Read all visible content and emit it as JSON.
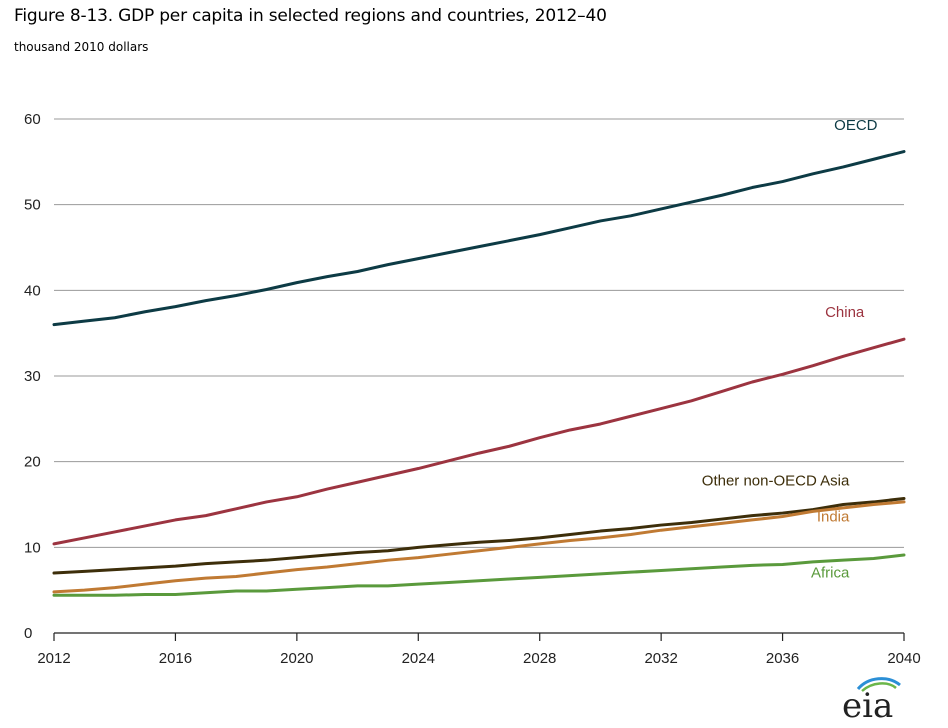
{
  "title": "Figure 8-13. GDP per capita in selected regions and countries, 2012–40",
  "subtitle": "thousand 2010 dollars",
  "logo_text": "eia",
  "chart_data": {
    "type": "line",
    "title": "Figure 8-13. GDP per capita in selected regions and countries, 2012–40",
    "ylabel": "thousand 2010 dollars",
    "xlabel": "",
    "xlim": [
      2012,
      2040
    ],
    "ylim": [
      0,
      60
    ],
    "x_ticks": [
      2012,
      2016,
      2020,
      2024,
      2028,
      2032,
      2036,
      2040
    ],
    "y_ticks": [
      0,
      10,
      20,
      30,
      40,
      50,
      60
    ],
    "grid": "horizontal",
    "legend": "inline labels",
    "x": [
      2012,
      2013,
      2014,
      2015,
      2016,
      2017,
      2018,
      2019,
      2020,
      2021,
      2022,
      2023,
      2024,
      2025,
      2026,
      2027,
      2028,
      2029,
      2030,
      2031,
      2032,
      2033,
      2034,
      2035,
      2036,
      2037,
      2038,
      2039,
      2040
    ],
    "series": [
      {
        "name": "OECD",
        "color": "#0d3b45",
        "values": [
          36.0,
          36.4,
          36.8,
          37.5,
          38.1,
          38.8,
          39.4,
          40.1,
          40.9,
          41.6,
          42.2,
          43.0,
          43.7,
          44.4,
          45.1,
          45.8,
          46.5,
          47.3,
          48.1,
          48.7,
          49.5,
          50.3,
          51.1,
          52.0,
          52.7,
          53.6,
          54.4,
          55.3,
          56.2
        ]
      },
      {
        "name": "China",
        "color": "#9c3440",
        "values": [
          10.4,
          11.1,
          11.8,
          12.5,
          13.2,
          13.7,
          14.5,
          15.3,
          15.9,
          16.8,
          17.6,
          18.4,
          19.2,
          20.1,
          21.0,
          21.8,
          22.8,
          23.7,
          24.4,
          25.3,
          26.2,
          27.1,
          28.2,
          29.3,
          30.2,
          31.2,
          32.3,
          33.3,
          34.3
        ]
      },
      {
        "name": "Other non-OECD Asia",
        "color": "#3d2e0a",
        "values": [
          7.0,
          7.2,
          7.4,
          7.6,
          7.8,
          8.1,
          8.3,
          8.5,
          8.8,
          9.1,
          9.4,
          9.6,
          10.0,
          10.3,
          10.6,
          10.8,
          11.1,
          11.5,
          11.9,
          12.2,
          12.6,
          12.9,
          13.3,
          13.7,
          14.0,
          14.4,
          15.0,
          15.3,
          15.7
        ]
      },
      {
        "name": "India",
        "color": "#c07a33",
        "values": [
          4.8,
          5.0,
          5.3,
          5.7,
          6.1,
          6.4,
          6.6,
          7.0,
          7.4,
          7.7,
          8.1,
          8.5,
          8.8,
          9.2,
          9.6,
          10.0,
          10.4,
          10.8,
          11.1,
          11.5,
          12.0,
          12.4,
          12.8,
          13.2,
          13.6,
          14.2,
          14.6,
          15.0,
          15.3
        ]
      },
      {
        "name": "Africa",
        "color": "#5a9a3c",
        "values": [
          4.4,
          4.4,
          4.4,
          4.5,
          4.5,
          4.7,
          4.9,
          4.9,
          5.1,
          5.3,
          5.5,
          5.5,
          5.7,
          5.9,
          6.1,
          6.3,
          6.5,
          6.7,
          6.9,
          7.1,
          7.3,
          7.5,
          7.7,
          7.9,
          8.0,
          8.3,
          8.5,
          8.7,
          9.1
        ]
      }
    ]
  }
}
